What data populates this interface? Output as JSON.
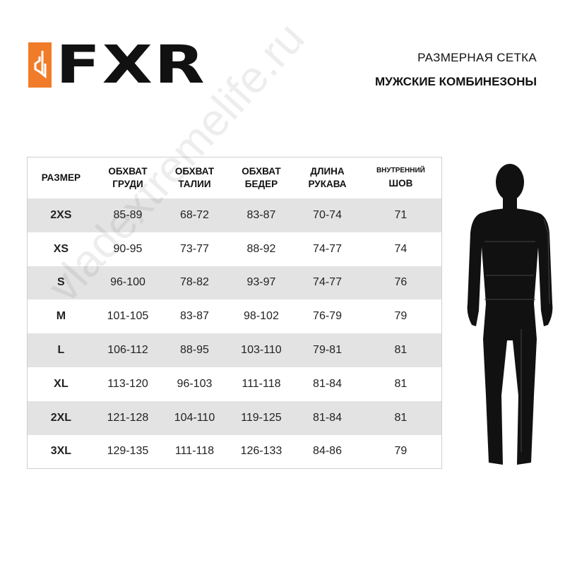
{
  "brand": {
    "logo_text": "FXR",
    "accent": "#f07c2a"
  },
  "header": {
    "title": "РАЗМЕРНАЯ СЕТКА",
    "subtitle": "МУЖСКИЕ КОМБИНЕЗОНЫ"
  },
  "watermark": "vladextremelife.ru",
  "table": {
    "columns": [
      {
        "l1": "РАЗМЕР",
        "l2": ""
      },
      {
        "l1": "ОБХВАТ",
        "l2": "ГРУДИ"
      },
      {
        "l1": "ОБХВАТ",
        "l2": "ТАЛИИ"
      },
      {
        "l1": "ОБХВАТ",
        "l2": "БЕДЕР"
      },
      {
        "l1": "ДЛИНА",
        "l2": "РУКАВА"
      },
      {
        "l1": "ВНУТРЕННИЙ",
        "l2": "ШОВ"
      }
    ],
    "rows": [
      [
        "2XS",
        "85-89",
        "68-72",
        "83-87",
        "70-74",
        "71"
      ],
      [
        "XS",
        "90-95",
        "73-77",
        "88-92",
        "74-77",
        "74"
      ],
      [
        "S",
        "96-100",
        "78-82",
        "93-97",
        "74-77",
        "76"
      ],
      [
        "M",
        "101-105",
        "83-87",
        "98-102",
        "76-79",
        "79"
      ],
      [
        "L",
        "106-112",
        "88-95",
        "103-110",
        "79-81",
        "81"
      ],
      [
        "XL",
        "113-120",
        "96-103",
        "111-118",
        "81-84",
        "81"
      ],
      [
        "2XL",
        "121-128",
        "104-110",
        "119-125",
        "81-84",
        "81"
      ],
      [
        "3XL",
        "129-135",
        "111-118",
        "126-133",
        "84-86",
        "79"
      ]
    ],
    "stripe_color": "#e3e3e3"
  }
}
